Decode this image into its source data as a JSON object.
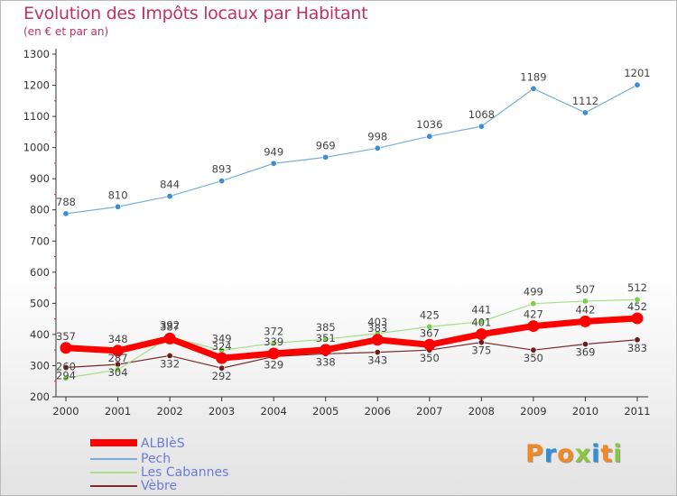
{
  "chart_data": {
    "type": "line",
    "title": "Evolution des Impôts locaux par Habitant",
    "subtitle": "(en € et par an)",
    "xlabel": "",
    "ylabel": "",
    "x": [
      "2000",
      "2001",
      "2002",
      "2003",
      "2004",
      "2005",
      "2006",
      "2007",
      "2008",
      "2009",
      "2010",
      "2011"
    ],
    "yticks": [
      "200",
      "300",
      "400",
      "500",
      "600",
      "700",
      "800",
      "900",
      "1000",
      "1100",
      "1200",
      "1300"
    ],
    "ylim": [
      200,
      1300
    ],
    "grid": false,
    "legend_position": "bottom-left",
    "series": [
      {
        "name": "ALBIèS",
        "color": "#ff0000",
        "values": [
          357,
          348,
          387,
          324,
          339,
          351,
          383,
          367,
          401,
          427,
          442,
          452
        ],
        "labels": [
          "357",
          "348",
          "387",
          "324",
          "339",
          "351",
          "383",
          "367",
          "401",
          "427",
          "442",
          "452"
        ]
      },
      {
        "name": "Pech",
        "color": "#7aaedc",
        "values": [
          788,
          810,
          844,
          893,
          949,
          969,
          998,
          1036,
          1068,
          1189,
          1112,
          1201
        ],
        "labels": [
          "788",
          "810",
          "844",
          "893",
          "949",
          "969",
          "998",
          "1036",
          "1068",
          "1189",
          "1112",
          "1201"
        ]
      },
      {
        "name": "Les Cabannes",
        "color": "#a8de88",
        "values": [
          260,
          287,
          392,
          349,
          372,
          385,
          403,
          425,
          441,
          499,
          507,
          512
        ],
        "labels": [
          "260",
          "287",
          "392",
          "349",
          "372",
          "385",
          "403",
          "425",
          "441",
          "499",
          "507",
          "512"
        ]
      },
      {
        "name": "Vèbre",
        "color": "#7a2a2a",
        "values": [
          294,
          304,
          332,
          292,
          329,
          338,
          343,
          350,
          375,
          350,
          369,
          383
        ],
        "labels": [
          "294",
          "304",
          "332",
          "292",
          "329",
          "338",
          "343",
          "350",
          "375",
          "350",
          "369",
          "383"
        ]
      }
    ]
  },
  "logo": {
    "letters": [
      "P",
      "r",
      "o",
      "x",
      "i",
      "t",
      "i"
    ],
    "colors": [
      "#f08a24",
      "#2f8fd8",
      "#f08a24",
      "#8cc63f",
      "#2f8fd8",
      "#f08a24",
      "#8cc63f"
    ]
  }
}
